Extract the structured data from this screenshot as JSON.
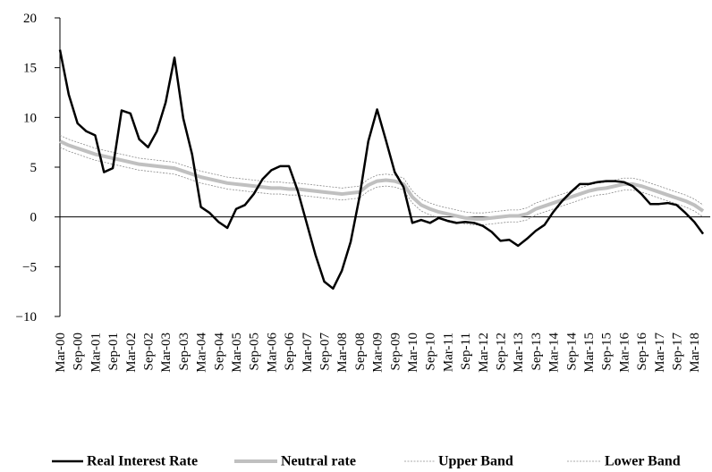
{
  "chart_data": {
    "type": "line",
    "categories": [
      "Mar-00",
      null,
      "Sep-00",
      null,
      "Mar-01",
      null,
      "Sep-01",
      null,
      "Mar-02",
      null,
      "Sep-02",
      null,
      "Mar-03",
      null,
      "Sep-03",
      null,
      "Mar-04",
      null,
      "Sep-04",
      null,
      "Mar-05",
      null,
      "Sep-05",
      null,
      "Mar-06",
      null,
      "Sep-06",
      null,
      "Mar-07",
      null,
      "Sep-07",
      null,
      "Mar-08",
      null,
      "Sep-08",
      null,
      "Mar-09",
      null,
      "Sep-09",
      null,
      "Mar-10",
      null,
      "Sep-10",
      null,
      "Mar-11",
      null,
      "Sep-11",
      null,
      "Mar-12",
      null,
      "Sep-12",
      null,
      "Mar-13",
      null,
      "Sep-13",
      null,
      "Mar-14",
      null,
      "Sep-14",
      null,
      "Mar-15",
      null,
      "Sep-15",
      null,
      "Mar-16",
      null,
      "Sep-16",
      null,
      "Mar-17",
      null,
      "Sep-17",
      null,
      "Mar-18",
      null
    ],
    "series": [
      {
        "name": "Real Interest Rate",
        "color": "#000000",
        "width": 2.5,
        "dash": "none",
        "values": [
          16.8,
          12.3,
          9.4,
          8.6,
          8.2,
          4.5,
          4.9,
          10.7,
          10.4,
          7.8,
          7.0,
          8.6,
          11.5,
          16.0,
          9.9,
          6.3,
          1.0,
          0.4,
          -0.5,
          -1.1,
          0.8,
          1.2,
          2.3,
          3.8,
          4.7,
          5.1,
          5.1,
          2.6,
          -0.6,
          -3.8,
          -6.5,
          -7.2,
          -5.4,
          -2.5,
          2.0,
          7.6,
          10.8,
          7.7,
          4.5,
          3.0,
          -0.6,
          -0.3,
          -0.6,
          -0.1,
          -0.4,
          -0.6,
          -0.5,
          -0.6,
          -0.9,
          -1.5,
          -2.4,
          -2.3,
          -2.9,
          -2.2,
          -1.4,
          -0.8,
          0.5,
          1.6,
          2.5,
          3.3,
          3.3,
          3.5,
          3.6,
          3.6,
          3.5,
          3.1,
          2.3,
          1.3,
          1.3,
          1.4,
          1.2,
          0.4,
          -0.5,
          -1.7
        ]
      },
      {
        "name": "Neutral rate",
        "color": "#c0c0c0",
        "width": 4,
        "dash": "none",
        "values": [
          7.6,
          7.2,
          6.9,
          6.6,
          6.3,
          6.1,
          5.9,
          5.7,
          5.5,
          5.3,
          5.2,
          5.1,
          5.0,
          4.9,
          4.6,
          4.3,
          4.0,
          3.8,
          3.6,
          3.4,
          3.3,
          3.2,
          3.1,
          3.0,
          2.9,
          2.9,
          2.8,
          2.8,
          2.7,
          2.6,
          2.5,
          2.4,
          2.3,
          2.4,
          2.5,
          3.2,
          3.6,
          3.7,
          3.6,
          3.3,
          2.0,
          1.2,
          0.8,
          0.5,
          0.3,
          0.1,
          -0.1,
          -0.2,
          -0.2,
          -0.1,
          0.0,
          0.1,
          0.1,
          0.3,
          0.8,
          1.1,
          1.4,
          1.7,
          2.0,
          2.3,
          2.6,
          2.8,
          2.9,
          3.1,
          3.3,
          3.3,
          3.1,
          2.8,
          2.5,
          2.2,
          1.9,
          1.6,
          1.2,
          0.6
        ]
      },
      {
        "name": "Upper Band",
        "color": "#8c8c8c",
        "width": 0.8,
        "dash": "2 1.5",
        "values": [
          8.2,
          7.8,
          7.5,
          7.2,
          6.9,
          6.7,
          6.5,
          6.3,
          6.1,
          5.9,
          5.8,
          5.7,
          5.6,
          5.5,
          5.2,
          4.9,
          4.6,
          4.4,
          4.2,
          4.0,
          3.9,
          3.8,
          3.7,
          3.6,
          3.5,
          3.5,
          3.4,
          3.4,
          3.3,
          3.2,
          3.1,
          3.0,
          2.9,
          3.0,
          3.1,
          3.8,
          4.2,
          4.3,
          4.2,
          3.9,
          2.6,
          1.8,
          1.4,
          1.1,
          0.9,
          0.7,
          0.5,
          0.4,
          0.4,
          0.5,
          0.6,
          0.7,
          0.7,
          0.9,
          1.4,
          1.7,
          2.0,
          2.3,
          2.6,
          2.9,
          3.2,
          3.4,
          3.5,
          3.7,
          3.9,
          3.9,
          3.7,
          3.4,
          3.1,
          2.8,
          2.5,
          2.2,
          1.8,
          1.2
        ]
      },
      {
        "name": "Lower Band",
        "color": "#8c8c8c",
        "width": 0.8,
        "dash": "2 1.5",
        "values": [
          7.0,
          6.6,
          6.3,
          6.0,
          5.7,
          5.5,
          5.3,
          5.1,
          4.9,
          4.7,
          4.6,
          4.5,
          4.4,
          4.3,
          4.0,
          3.7,
          3.4,
          3.2,
          3.0,
          2.8,
          2.7,
          2.6,
          2.5,
          2.4,
          2.3,
          2.3,
          2.2,
          2.2,
          2.1,
          2.0,
          1.9,
          1.8,
          1.7,
          1.8,
          1.9,
          2.6,
          3.0,
          3.1,
          3.0,
          2.7,
          1.4,
          0.6,
          0.2,
          -0.1,
          -0.3,
          -0.5,
          -0.7,
          -0.8,
          -0.8,
          -0.7,
          -0.6,
          -0.5,
          -0.5,
          -0.3,
          0.2,
          0.5,
          0.8,
          1.1,
          1.4,
          1.7,
          2.0,
          2.2,
          2.3,
          2.5,
          2.7,
          2.7,
          2.5,
          2.2,
          1.9,
          1.6,
          1.3,
          1.0,
          0.6,
          0.0
        ]
      }
    ],
    "ylim": [
      -10,
      20
    ],
    "yticks": [
      {
        "value": -10,
        "label": "−10"
      },
      {
        "value": -5,
        "label": "−5"
      },
      0,
      5,
      10,
      15,
      20
    ],
    "grid": false,
    "legend": "bottom"
  }
}
